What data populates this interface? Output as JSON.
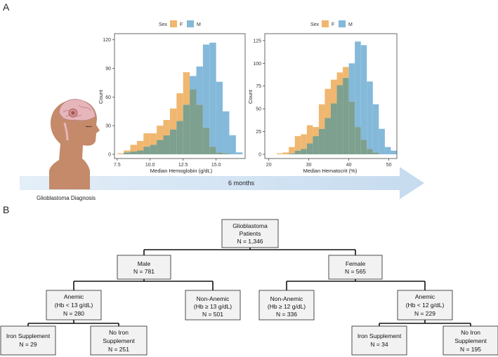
{
  "panel_labels": {
    "a": "A",
    "b": "B"
  },
  "colors": {
    "female": "#f0b770",
    "male": "#84b9da",
    "overlap": "#7ea08e",
    "arrow": "#cddff0",
    "box_fill": "#f2f2f2"
  },
  "timeline": {
    "duration_label": "6 months",
    "diagnosis_label": "Glioblastoma Diagnosis"
  },
  "chart_data": [
    {
      "type": "histogram",
      "title": "",
      "legend": {
        "title": "Sex",
        "entries": [
          "F",
          "M"
        ],
        "position": "top"
      },
      "xlabel": "Median Hemoglobin (g/dL)",
      "ylabel": "Count",
      "xlim": [
        7.3,
        17.2
      ],
      "ylim": [
        0,
        122
      ],
      "xticks": [
        "7.5",
        "10.0",
        "12.5",
        "15.0"
      ],
      "yticks": [
        "0",
        "30",
        "60",
        "90",
        "120"
      ],
      "bin_width": 0.5,
      "bins_start": 7.5,
      "series": [
        {
          "name": "F",
          "values": [
            1,
            4,
            10,
            14,
            22,
            22,
            30,
            36,
            48,
            64,
            86,
            68,
            52,
            28,
            8,
            2,
            1,
            0,
            0
          ]
        },
        {
          "name": "M",
          "values": [
            0,
            2,
            3,
            4,
            8,
            10,
            15,
            20,
            26,
            35,
            52,
            82,
            92,
            115,
            117,
            76,
            45,
            20,
            2
          ]
        }
      ]
    },
    {
      "type": "histogram",
      "title": "",
      "legend": {
        "title": "Sex",
        "entries": [
          "F",
          "M"
        ],
        "position": "top"
      },
      "xlabel": "Median Hematocrit (%)",
      "ylabel": "Count",
      "xlim": [
        19,
        52
      ],
      "ylim": [
        0,
        128
      ],
      "xticks": [
        "20",
        "30",
        "40",
        "50"
      ],
      "yticks": [
        "0",
        "25",
        "50",
        "75",
        "100",
        "125"
      ],
      "bin_width": 1.5,
      "bins_start": 22,
      "series": [
        {
          "name": "F",
          "values": [
            1,
            2,
            8,
            20,
            22,
            32,
            30,
            55,
            72,
            82,
            90,
            96,
            58,
            30,
            16,
            6,
            2,
            0,
            0,
            0
          ]
        },
        {
          "name": "M",
          "values": [
            0,
            0,
            1,
            4,
            6,
            12,
            20,
            28,
            40,
            56,
            76,
            84,
            100,
            124,
            120,
            80,
            55,
            28,
            8,
            4
          ]
        }
      ]
    }
  ],
  "tree": {
    "root": {
      "lines": [
        "Glioblastoma",
        "Patients",
        "N = 1,346"
      ]
    },
    "male": {
      "lines": [
        "Male",
        "N = 781"
      ]
    },
    "female": {
      "lines": [
        "Female",
        "N = 565"
      ]
    },
    "male_anemic": {
      "lines": [
        "Anemic",
        "(Hb < 13 g/dL)",
        "N = 280"
      ]
    },
    "male_nonanemic": {
      "lines": [
        "Non-Anemic",
        "(Hb ≥ 13 g/dL)",
        "N = 501"
      ]
    },
    "female_nonanemic": {
      "lines": [
        "Non-Anemic",
        "(Hb ≥ 12 g/dL)",
        "N = 336"
      ]
    },
    "female_anemic": {
      "lines": [
        "Anemic",
        "(Hb < 12 g/dL)",
        "N = 229"
      ]
    },
    "male_iron": {
      "lines": [
        "Iron Supplement",
        "N = 29"
      ]
    },
    "male_noiron": {
      "lines": [
        "No Iron",
        "Supplement",
        "N = 251"
      ]
    },
    "female_iron": {
      "lines": [
        "Iron Supplement",
        "N = 34"
      ]
    },
    "female_noiron": {
      "lines": [
        "No Iron",
        "Supplement",
        "N = 195"
      ]
    }
  }
}
